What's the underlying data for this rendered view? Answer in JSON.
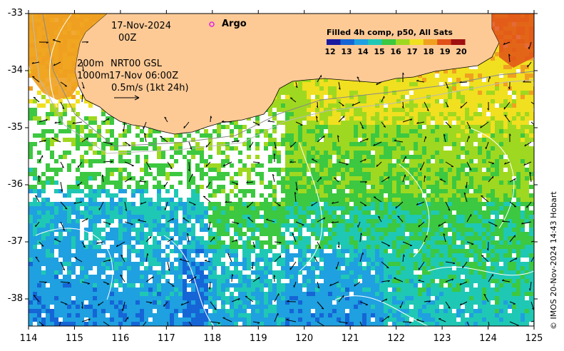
{
  "map": {
    "lon_ticks": [
      "114",
      "115",
      "116",
      "117",
      "118",
      "119",
      "120",
      "121",
      "122",
      "123",
      "124",
      "125"
    ],
    "lat_ticks": [
      "-33",
      "-34",
      "-35",
      "-36",
      "-37",
      "-38"
    ],
    "date_text": "17-Nov-2024",
    "time_text": "00Z",
    "contour_text_1": "200m",
    "contour_text_2": "1000m",
    "source_text": "NRT00 GSL",
    "source_time_text": "17-Nov 06:00Z",
    "scale_text": "0.5m/s (1kt 24h)",
    "argo_label": "Argo",
    "land_color": "#fdca96",
    "argo_color": "#e020e0"
  },
  "legend": {
    "title": "Filled 4h comp, p50, All Sats",
    "ticks": [
      "12",
      "13",
      "14",
      "15",
      "16",
      "17",
      "18",
      "19",
      "20"
    ],
    "colors": [
      "#1a1aa0",
      "#1565d6",
      "#1fa0e0",
      "#1fc8b4",
      "#3cc840",
      "#9fd820",
      "#f0e020",
      "#f0a020",
      "#e05018",
      "#a01010"
    ]
  },
  "copyright": "© IMOS 20-Nov-2024 14:43 Hobart"
}
